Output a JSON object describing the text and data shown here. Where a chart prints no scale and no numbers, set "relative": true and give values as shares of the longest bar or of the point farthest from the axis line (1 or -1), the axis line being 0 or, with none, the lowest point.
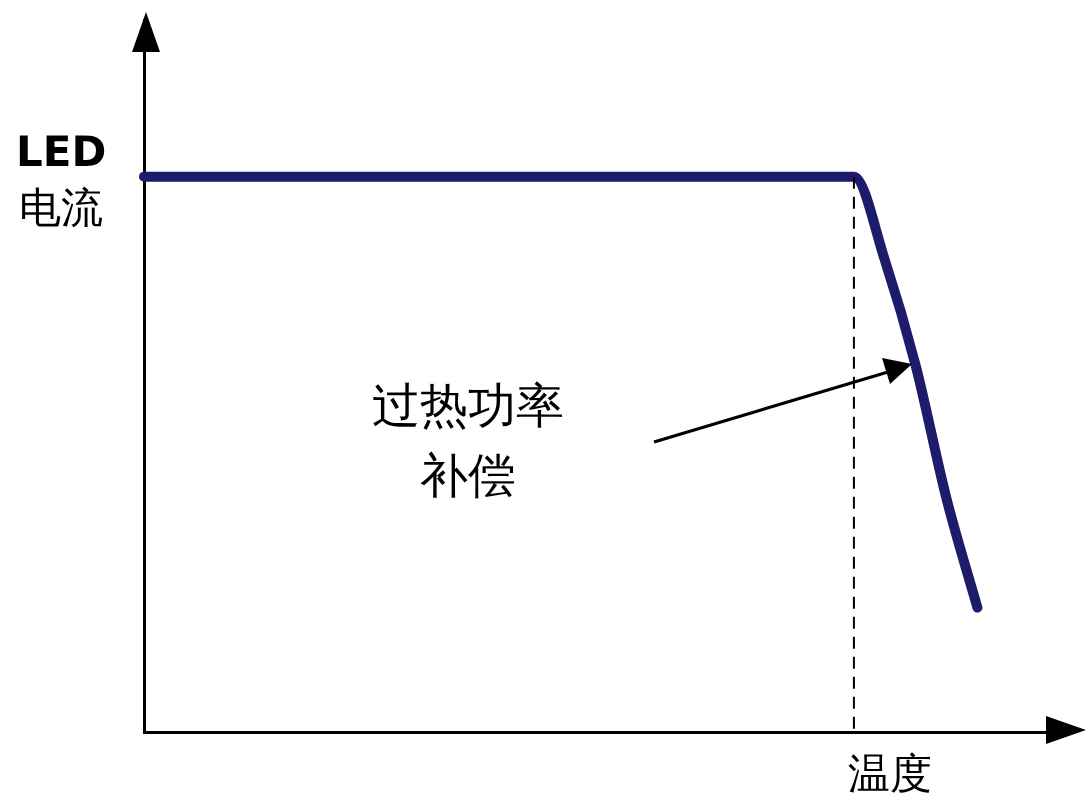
{
  "chart_data": {
    "type": "line",
    "relative": true,
    "xlabel": "温度",
    "ylabel": "LED\n电流",
    "categories": [
      null,
      null,
      null,
      null,
      null,
      null,
      null,
      null,
      null,
      null,
      null,
      null,
      null,
      null,
      null,
      null,
      null,
      null,
      null,
      null,
      null,
      null,
      null,
      null,
      null,
      null,
      null,
      null,
      null,
      null,
      null
    ],
    "series": [
      {
        "color": "#1c1c6b",
        "values": [
          1,
          1,
          1,
          1,
          1,
          1,
          1,
          1,
          1,
          1,
          1,
          1,
          1,
          1,
          1,
          1,
          1,
          1,
          1,
          1,
          1,
          1,
          1,
          1,
          0.85,
          0.66,
          0.42,
          0.224,
          null,
          null,
          null
        ]
      }
    ],
    "annotations": [
      "过热功率补偿"
    ],
    "marker": "none",
    "line_style": "solid",
    "grid": false,
    "legend": false,
    "tick_labels": false
  }
}
